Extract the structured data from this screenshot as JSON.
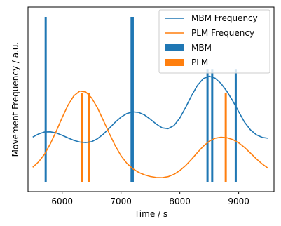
{
  "chart_data": {
    "type": "line",
    "xlabel": "Time / s",
    "ylabel": "Movement Frequency / a.u.",
    "xlim": [
      5420,
      9600
    ],
    "ylim": [
      0,
      1
    ],
    "xticks": [
      6000,
      7000,
      8000,
      9000
    ],
    "xtick_labels": [
      "6000",
      "7000",
      "8000",
      "9000"
    ],
    "yticks_shown": false,
    "grid": false,
    "legend": {
      "placement": "top-right",
      "entries": [
        {
          "label": "MBM Frequency",
          "kind": "line",
          "color": "#1f77b4"
        },
        {
          "label": "PLM Frequency",
          "kind": "line",
          "color": "#ff7f0e"
        },
        {
          "label": "MBM",
          "kind": "patch",
          "color": "#1f77b4"
        },
        {
          "label": "PLM",
          "kind": "patch",
          "color": "#ff7f0e"
        }
      ]
    },
    "series": [
      {
        "name": "MBM Frequency",
        "kind": "line",
        "color": "#1f77b4",
        "x": [
          5500,
          5600,
          5700,
          5800,
          5900,
          6000,
          6100,
          6200,
          6300,
          6400,
          6500,
          6600,
          6700,
          6800,
          6900,
          7000,
          7100,
          7200,
          7300,
          7400,
          7500,
          7600,
          7700,
          7800,
          7900,
          8000,
          8100,
          8200,
          8300,
          8400,
          8500,
          8600,
          8700,
          8800,
          8900,
          9000,
          9100,
          9200,
          9300,
          9400,
          9500
        ],
        "y": [
          0.271,
          0.29,
          0.302,
          0.303,
          0.296,
          0.282,
          0.266,
          0.251,
          0.241,
          0.238,
          0.243,
          0.261,
          0.289,
          0.324,
          0.361,
          0.392,
          0.414,
          0.424,
          0.421,
          0.405,
          0.379,
          0.35,
          0.327,
          0.322,
          0.341,
          0.387,
          0.452,
          0.523,
          0.585,
          0.626,
          0.64,
          0.628,
          0.596,
          0.548,
          0.49,
          0.425,
          0.361,
          0.315,
          0.285,
          0.269,
          0.264
        ]
      },
      {
        "name": "PLM Frequency",
        "kind": "line",
        "color": "#ff7f0e",
        "x": [
          5500,
          5600,
          5700,
          5800,
          5900,
          6000,
          6100,
          6200,
          6300,
          6400,
          6500,
          6600,
          6700,
          6800,
          6900,
          7000,
          7100,
          7200,
          7300,
          7400,
          7500,
          7600,
          7700,
          7800,
          7900,
          8000,
          8100,
          8200,
          8300,
          8400,
          8500,
          8600,
          8700,
          8800,
          8900,
          9000,
          9100,
          9200,
          9300,
          9400,
          9500
        ],
        "y": [
          0.088,
          0.121,
          0.167,
          0.231,
          0.307,
          0.389,
          0.465,
          0.522,
          0.55,
          0.545,
          0.509,
          0.448,
          0.372,
          0.294,
          0.22,
          0.158,
          0.112,
          0.079,
          0.057,
          0.042,
          0.032,
          0.026,
          0.025,
          0.031,
          0.045,
          0.068,
          0.099,
          0.137,
          0.178,
          0.216,
          0.246,
          0.264,
          0.27,
          0.267,
          0.256,
          0.236,
          0.208,
          0.174,
          0.139,
          0.108,
          0.082
        ]
      },
      {
        "name": "MBM",
        "kind": "event-lines",
        "color": "#1f77b4",
        "x": [
          5720,
          7180,
          7200,
          8470,
          8550,
          8950
        ],
        "heights": [
          1.0,
          1.0,
          1.0,
          0.68,
          0.68,
          0.68
        ]
      },
      {
        "name": "PLM",
        "kind": "event-lines",
        "color": "#ff7f0e",
        "x": [
          6340,
          6450,
          8780
        ],
        "heights": [
          0.54,
          0.54,
          0.54
        ]
      }
    ]
  }
}
